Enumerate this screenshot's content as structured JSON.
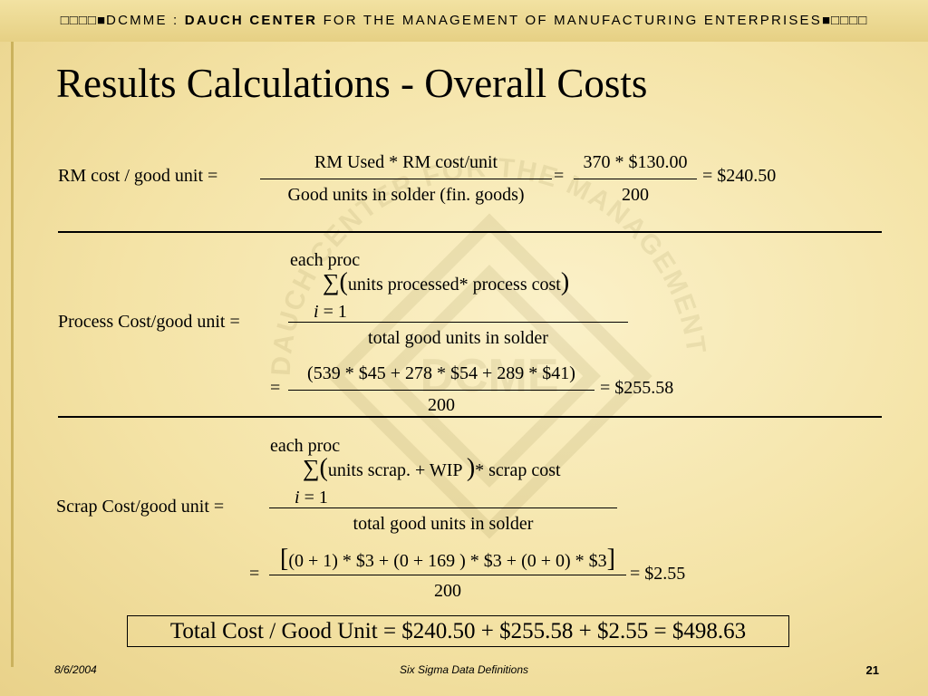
{
  "header": {
    "boxes_left": "□□□□■",
    "prefix": "DCMME : ",
    "bold": "DAUCH CENTER",
    "rest": " FOR THE MANAGEMENT OF MANUFACTURING ENTERPRISES",
    "boxes_right": "■□□□□"
  },
  "watermark": {
    "logo_text": "DCME",
    "arc_text": "DAUCH CENTER FOR THE MANAGEMENT OF MANUFACTURING ENTERPRISES"
  },
  "slide": {
    "title": "Results Calculations -  Overall Costs"
  },
  "rm": {
    "lhs": "RM cost / good unit =",
    "num": "RM Used * RM cost/unit",
    "den": "Good units in solder (fin. goods)",
    "eq1": "=",
    "num2": "370 * $130.00",
    "den2": "200",
    "result": "= $240.50"
  },
  "process": {
    "top_limit": "each proc",
    "sigma": "∑",
    "open": "(",
    "summand": "units processed* process  cost",
    "close": ")",
    "index_var": "i",
    "index_rest": " = 1",
    "lhs": "Process Cost/good unit =",
    "den": "total good units in solder",
    "eq2": "=",
    "num2": "(539 * $45 + 278 * $54 + 289 * $41)",
    "den2": "200",
    "result": "= $255.58"
  },
  "scrap": {
    "top_limit": "each proc",
    "sigma": "∑",
    "open": "(",
    "summand": "units scrap. + WIP ",
    "close": ")",
    "after": "* scrap  cost",
    "index_var": "i",
    "index_rest": " = 1",
    "lhs": "Scrap Cost/good unit =",
    "den": "total good units in solder",
    "eq2": "=",
    "open_br": "[",
    "num2": "(0 + 1) * $3 + (0 + 169 ) * $3 + (0 + 0) * $3",
    "close_br": "]",
    "den2": "200",
    "result": "= $2.55"
  },
  "total": {
    "text": "Total Cost / Good  Unit  = $240.50 + $255.58 + $2.55 = $498.63"
  },
  "footer": {
    "date": "8/6/2004",
    "center": "Six Sigma Data Definitions",
    "page": "21"
  }
}
